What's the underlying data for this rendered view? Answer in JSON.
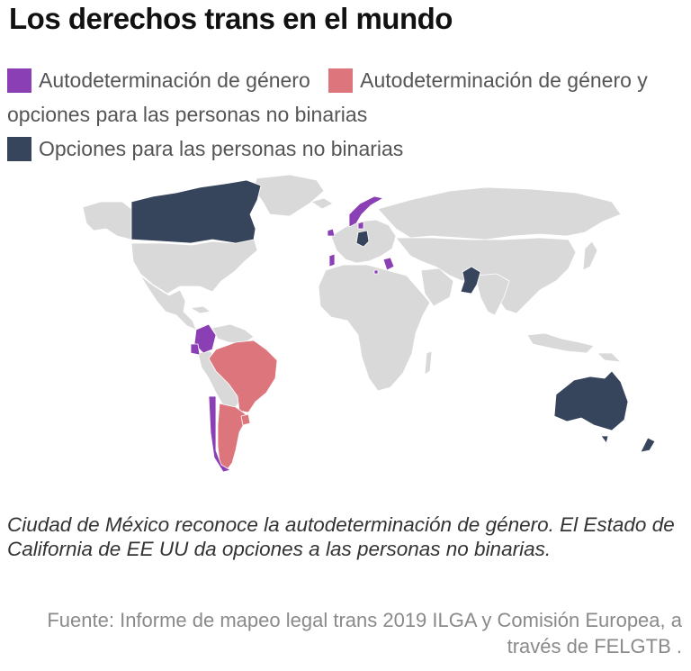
{
  "title": "Los derechos trans en el mundo",
  "legend": [
    {
      "label": "Autodeterminación de género",
      "color": "#8b3fb5"
    },
    {
      "label": "Autodeterminación de género y opciones para las personas no binarias",
      "color": "#dc767c"
    },
    {
      "label": "Opciones para las personas no binarias",
      "color": "#36445c"
    }
  ],
  "map": {
    "base_color": "#d9d9d9",
    "highlighted": {
      "self_determination": [
        "Colombia",
        "Ecuador",
        "Chile",
        "Portugal",
        "Ireland",
        "Norway",
        "Denmark",
        "Malta",
        "Greece",
        "Luxembourg",
        "Belgium"
      ],
      "self_determination_and_non_binary": [
        "Brazil",
        "Argentina",
        "Uruguay"
      ],
      "non_binary_options": [
        "Canada",
        "Germany",
        "Pakistan",
        "Australia",
        "New Zealand"
      ]
    }
  },
  "note": "Ciudad de México reconoce la autodeterminación de género. El Estado de California de EE UU da opciones a las personas no binarias.",
  "source": "Fuente: Informe de mapeo legal trans 2019 ILGA y Comisión Europea, a través de FELGTB ."
}
